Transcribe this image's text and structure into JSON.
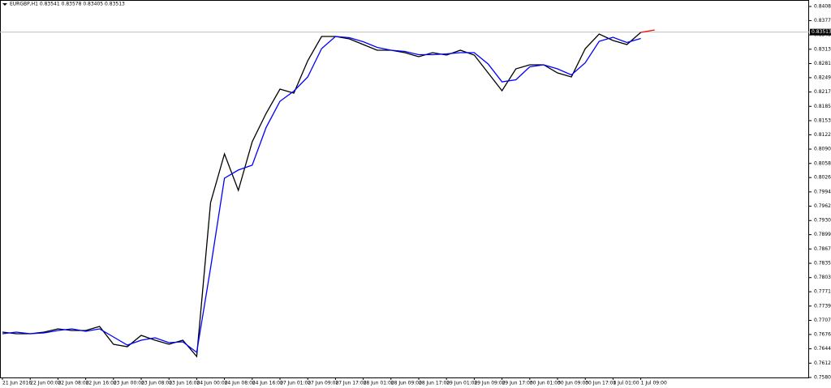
{
  "chart_data": {
    "type": "line",
    "title": "EURGBP,H1  0.83541 0.83578 0.83405 0.83513",
    "last_price": 0.83513,
    "categories": [
      "21 Jun 2016",
      null,
      "22 Jun 00:00",
      null,
      "22 Jun 08:00",
      null,
      "22 Jun 16:00",
      null,
      "23 Jun 00:00",
      null,
      "23 Jun 08:00",
      null,
      "23 Jun 16:00",
      null,
      "24 Jun 00:00",
      null,
      "24 Jun 08:00",
      null,
      "24 Jun 16:00",
      null,
      "27 Jun 01:00",
      null,
      "27 Jun 09:00",
      null,
      "27 Jun 17:00",
      null,
      "28 Jun 01:00",
      null,
      "28 Jun 09:00",
      null,
      "28 Jun 17:00",
      null,
      "29 Jun 01:00",
      null,
      "29 Jun 09:00",
      null,
      "29 Jun 17:00",
      null,
      "30 Jun 01:00",
      null,
      "30 Jun 09:00",
      null,
      "30 Jun 17:00",
      null,
      "1 Jul 01:00",
      null,
      "1 Jul 09:00",
      null
    ],
    "series": [
      {
        "color": "#000000",
        "values": [
          0.76813,
          0.76777,
          0.76777,
          0.76813,
          0.76885,
          0.76849,
          0.76849,
          0.7694,
          0.76542,
          0.76487,
          0.7674,
          0.76632,
          0.76542,
          0.76632,
          0.7627,
          0.79707,
          0.80793,
          0.79979,
          0.81064,
          0.81697,
          0.8224,
          0.82149,
          0.82873,
          0.83416,
          0.83416,
          0.83361,
          0.83235,
          0.83108,
          0.83108,
          0.83054,
          0.82963,
          0.83054,
          0.82999,
          0.83108,
          0.82999,
          0.82602,
          0.82204,
          0.82692,
          0.82783,
          0.82783,
          0.82602,
          0.82511,
          0.83144,
          0.8347,
          0.83325,
          0.83235,
          0.83506,
          null
        ]
      },
      {
        "color": "#0000ff",
        "values": [
          0.76777,
          0.76813,
          0.76777,
          0.76795,
          0.76849,
          0.76885,
          0.76831,
          0.76885,
          0.76705,
          0.76523,
          0.76632,
          0.76686,
          0.76578,
          0.76596,
          0.76361,
          0.7825,
          0.8025,
          0.80432,
          0.80541,
          0.81383,
          0.81968,
          0.82195,
          0.82511,
          0.83144,
          0.83416,
          0.83388,
          0.83298,
          0.83172,
          0.83108,
          0.83081,
          0.83008,
          0.83009,
          0.83027,
          0.83054,
          0.83054,
          0.828,
          0.82403,
          0.82448,
          0.82737,
          0.82783,
          0.82692,
          0.82556,
          0.82827,
          0.83307,
          0.83397,
          0.8328,
          0.8337,
          null
        ]
      },
      {
        "color": "#ff0000",
        "values": [
          null,
          null,
          null,
          null,
          null,
          null,
          null,
          null,
          null,
          null,
          null,
          null,
          null,
          null,
          null,
          null,
          null,
          null,
          null,
          null,
          null,
          null,
          null,
          null,
          null,
          null,
          null,
          null,
          null,
          null,
          null,
          null,
          null,
          null,
          null,
          null,
          null,
          null,
          null,
          null,
          null,
          null,
          null,
          null,
          null,
          null,
          0.83506,
          0.8356
        ]
      }
    ],
    "ylim": [
      0.758,
      0.84085
    ],
    "yticks": [
      0.84085,
      {
        "value": 0.8377,
        "label": "0.83770"
      },
      {
        "value": 0.8345,
        "label": "0.83450"
      },
      {
        "value": 0.8313,
        "label": "0.83130"
      },
      {
        "value": 0.8281,
        "label": "0.82810"
      },
      0.82495,
      0.82175,
      0.81855,
      0.81535,
      {
        "value": 0.8122,
        "label": "0.81220"
      },
      {
        "value": 0.809,
        "label": "0.80900"
      },
      {
        "value": 0.8058,
        "label": "0.80580"
      },
      0.80265,
      0.79945,
      0.79625,
      0.79305,
      {
        "value": 0.7899,
        "label": "0.78990"
      },
      {
        "value": 0.7867,
        "label": "0.78670"
      },
      {
        "value": 0.7835,
        "label": "0.78350"
      },
      {
        "value": 0.7803,
        "label": "0.78030"
      },
      0.77715,
      0.77395,
      0.77075,
      {
        "value": 0.7676,
        "label": "0.76760"
      },
      {
        "value": 0.7644,
        "label": "0.76440"
      },
      {
        "value": 0.7612,
        "label": "0.76120"
      },
      {
        "value": 0.758,
        "label": "0.75800"
      }
    ]
  }
}
